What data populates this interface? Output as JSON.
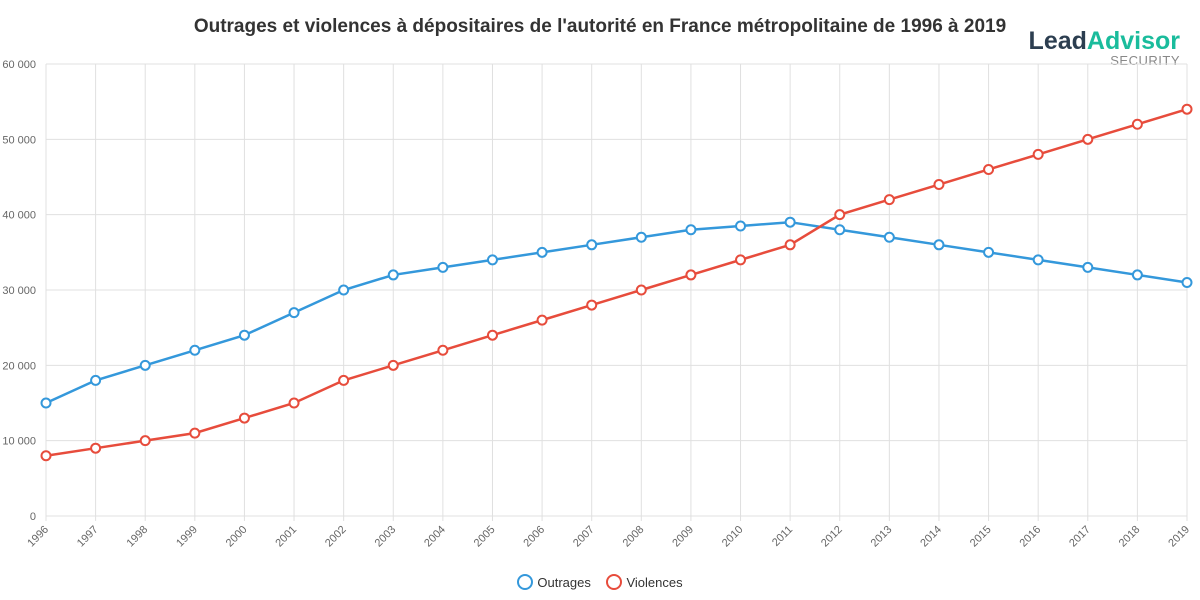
{
  "chart_data": {
    "type": "line",
    "title": "Outrages et violences à dépositaires de l'autorité en France métropolitaine de 1996 à 2019",
    "categories": [
      "1996",
      "1997",
      "1998",
      "1999",
      "2000",
      "2001",
      "2002",
      "2003",
      "2004",
      "2005",
      "2006",
      "2007",
      "2008",
      "2009",
      "2010",
      "2011",
      "2012",
      "2013",
      "2014",
      "2015",
      "2016",
      "2017",
      "2018",
      "2019"
    ],
    "series": [
      {
        "name": "Outrages",
        "color": "#3498db",
        "values": [
          15000,
          18000,
          20000,
          22000,
          24000,
          27000,
          30000,
          32000,
          33000,
          34000,
          35000,
          36000,
          37000,
          38000,
          38500,
          39000,
          38000,
          37000,
          36000,
          35000,
          34000,
          33000,
          32000,
          31000
        ]
      },
      {
        "name": "Violences",
        "color": "#e74c3c",
        "values": [
          8000,
          9000,
          10000,
          11000,
          13000,
          15000,
          18000,
          20000,
          22000,
          24000,
          26000,
          28000,
          30000,
          32000,
          34000,
          36000,
          40000,
          42000,
          44000,
          46000,
          48000,
          50000,
          52000,
          54000
        ]
      }
    ],
    "ylim": [
      0,
      60000
    ],
    "yticks": [
      "0",
      "10 000",
      "20 000",
      "30 000",
      "40 000",
      "50 000",
      "60 000"
    ],
    "grid": true,
    "legend": "bottom"
  },
  "logo": {
    "lead": "Lead",
    "advisor": "Advisor",
    "sub": "SECURITY"
  }
}
